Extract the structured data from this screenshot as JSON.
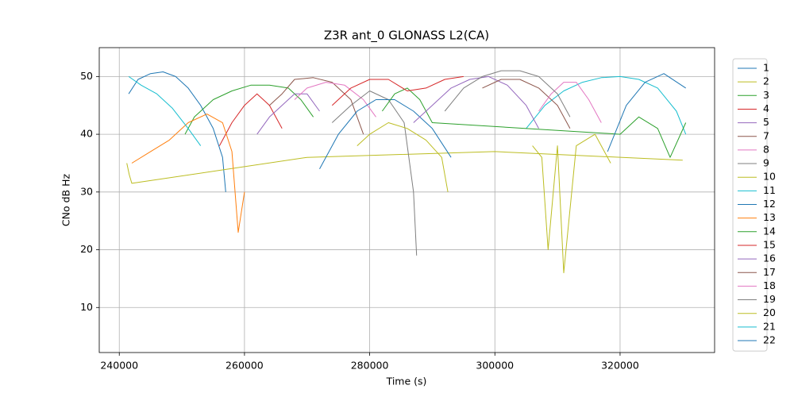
{
  "chart_data": {
    "type": "line",
    "title": "Z3R ant_0 GLONASS L2(CA)",
    "xlabel": "Time (s)",
    "ylabel": "CNo dB Hz",
    "xlim": [
      236800,
      335100
    ],
    "ylim": [
      2.2,
      55
    ],
    "xticks": [
      240000,
      260000,
      280000,
      300000,
      320000
    ],
    "yticks": [
      10,
      20,
      30,
      40,
      50
    ],
    "grid": true,
    "legend": "outside-right",
    "series": [
      {
        "name": "1",
        "color": "#1f77b4",
        "x": [
          241500,
          243000,
          245000,
          247000,
          249000,
          251000,
          253000,
          255000,
          256500,
          257000
        ],
        "values": [
          47,
          49.5,
          50.5,
          50.8,
          50,
          48,
          45,
          41,
          36,
          30
        ]
      },
      {
        "name": "2",
        "color": "#bcbd22",
        "x": [
          241200,
          241600,
          242000,
          270000,
          300000,
          330000
        ],
        "values": [
          35,
          33,
          31.5,
          36,
          37,
          35.5
        ]
      },
      {
        "name": "3",
        "color": "#2ca02c",
        "x": [
          250500,
          252000,
          255000,
          258000,
          261000,
          264000,
          267000,
          269000,
          271000
        ],
        "values": [
          40,
          43,
          46,
          47.5,
          48.5,
          48.5,
          48,
          46,
          43
        ]
      },
      {
        "name": "4",
        "color": "#d62728",
        "x": [
          256000,
          258000,
          260000,
          262000,
          264000,
          266000
        ],
        "values": [
          38,
          42,
          45,
          47,
          45,
          41
        ]
      },
      {
        "name": "5",
        "color": "#9467bd",
        "x": [
          262000,
          264000,
          266000,
          268000,
          270000,
          272000
        ],
        "values": [
          40,
          43,
          45,
          47,
          47,
          44
        ]
      },
      {
        "name": "7",
        "color": "#8c564b",
        "x": [
          264000,
          266000,
          268000,
          271000,
          274000,
          277000,
          279000
        ],
        "values": [
          45,
          47,
          49.5,
          49.8,
          49,
          46,
          40
        ]
      },
      {
        "name": "8",
        "color": "#e377c2",
        "x": [
          268000,
          270000,
          273000,
          276000,
          279000,
          281000
        ],
        "values": [
          46,
          48,
          49,
          48.5,
          46,
          43
        ]
      },
      {
        "name": "9",
        "color": "#7f7f7f",
        "x": [
          274000,
          277000,
          280000,
          283000,
          285500,
          287000,
          287500
        ],
        "values": [
          42,
          45,
          47.5,
          46,
          42,
          30,
          19
        ]
      },
      {
        "name": "10",
        "color": "#bcbd22",
        "x": [
          278000,
          280000,
          283000,
          286000,
          289000,
          291500,
          292500
        ],
        "values": [
          38,
          40,
          42,
          41,
          39,
          36,
          30
        ]
      },
      {
        "name": "11",
        "color": "#17becf",
        "x": [
          305000,
          308000,
          311000,
          314000,
          317000,
          320000,
          323000,
          326000,
          329000,
          330500
        ],
        "values": [
          41,
          45,
          47.5,
          49,
          49.8,
          50,
          49.5,
          48,
          44,
          40
        ]
      },
      {
        "name": "12",
        "color": "#1f77b4",
        "x": [
          272000,
          275000,
          278000,
          281000,
          284000,
          287000,
          290000,
          293000
        ],
        "values": [
          34,
          40,
          44,
          46,
          46,
          44,
          41,
          36
        ]
      },
      {
        "name": "13",
        "color": "#ff7f0e",
        "x": [
          242000,
          245000,
          248000,
          251000,
          254000,
          256500,
          258000,
          259000,
          260000
        ],
        "values": [
          35,
          37,
          39,
          42,
          43.5,
          42,
          37,
          23,
          30
        ]
      },
      {
        "name": "14",
        "color": "#2ca02c",
        "x": [
          282000,
          284000,
          286000,
          288000,
          290000,
          320000,
          323000,
          326000,
          328000,
          330500
        ],
        "values": [
          44,
          47,
          48,
          46,
          42,
          40,
          43,
          41,
          36,
          42
        ]
      },
      {
        "name": "15",
        "color": "#d62728",
        "x": [
          274000,
          277000,
          280000,
          283000,
          286000,
          289000,
          292000,
          295000
        ],
        "values": [
          45,
          48,
          49.5,
          49.5,
          47.5,
          48,
          49.5,
          50
        ]
      },
      {
        "name": "16",
        "color": "#9467bd",
        "x": [
          287000,
          290000,
          293000,
          296000,
          299000,
          302000,
          305000,
          307000
        ],
        "values": [
          42,
          45,
          48,
          49.5,
          50,
          48.5,
          45,
          41
        ]
      },
      {
        "name": "17",
        "color": "#8c564b",
        "x": [
          298000,
          301000,
          304000,
          307000,
          310000,
          312000
        ],
        "values": [
          48,
          49.5,
          49.5,
          48,
          45,
          41
        ]
      },
      {
        "name": "18",
        "color": "#e377c2",
        "x": [
          307000,
          309000,
          311000,
          313000,
          315000,
          317000
        ],
        "values": [
          44,
          47,
          49,
          49,
          46,
          42
        ]
      },
      {
        "name": "19",
        "color": "#7f7f7f",
        "x": [
          292000,
          295000,
          298000,
          301000,
          304000,
          307000,
          310000,
          312000
        ],
        "values": [
          44,
          48,
          50,
          51,
          51,
          50,
          47,
          43
        ]
      },
      {
        "name": "20",
        "color": "#bcbd22",
        "x": [
          306000,
          307500,
          308500,
          310000,
          311000,
          313000,
          316000,
          318500
        ],
        "values": [
          38,
          36,
          20,
          38,
          16,
          38,
          40,
          35
        ]
      },
      {
        "name": "21",
        "color": "#17becf",
        "x": [
          241500,
          243500,
          246000,
          248500,
          251000,
          253000
        ],
        "values": [
          50,
          48.5,
          47,
          44.5,
          41,
          38
        ]
      },
      {
        "name": "22",
        "color": "#1f77b4",
        "x": [
          318000,
          321000,
          324000,
          327000,
          330500
        ],
        "values": [
          37,
          45,
          49,
          50.5,
          48
        ]
      }
    ]
  }
}
